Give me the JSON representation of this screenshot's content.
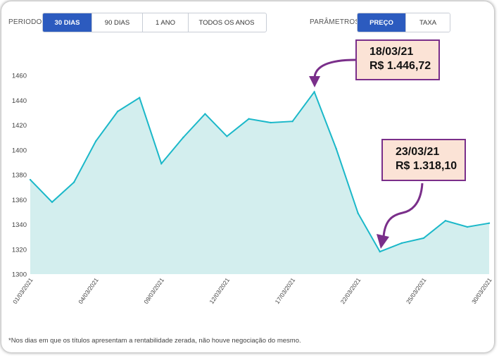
{
  "filters": {
    "period_label": "PERIODO",
    "period_options": [
      "30 DIAS",
      "90 DIAS",
      "1 ANO",
      "TODOS OS ANOS"
    ],
    "period_selected": "30 DIAS",
    "param_label": "PARÂMETROS",
    "param_options": [
      "PREÇO",
      "TAXA"
    ],
    "param_selected": "PREÇO"
  },
  "callouts": [
    {
      "line1": "18/03/21",
      "line2": "R$ 1.446,72"
    },
    {
      "line1": "23/03/21",
      "line2": "R$ 1.318,10"
    }
  ],
  "footnote": "*Nos dias em que os títulos apresentam a rentabilidade zerada, não houve negociação do mesmo.",
  "colors": {
    "line": "#1bb8c9",
    "fill": "#d3eeee",
    "accent": "#2c5bbf",
    "callout_border": "#7a2f8a",
    "callout_bg": "#fbe3d6"
  },
  "chart_data": {
    "type": "area",
    "ylim": [
      1300,
      1460
    ],
    "yticks": [
      1300,
      1320,
      1340,
      1360,
      1380,
      1400,
      1420,
      1440,
      1460
    ],
    "xtick_labels": [
      "01/03/2021",
      "04/03/2021",
      "09/03/2021",
      "12/03/2021",
      "17/03/2021",
      "22/03/2021",
      "25/03/2021",
      "30/03/2021"
    ],
    "xtick_indices": [
      0,
      3,
      6,
      9,
      12,
      15,
      18,
      21
    ],
    "values": [
      1376,
      1358,
      1374,
      1407,
      1431,
      1442,
      1389,
      1410,
      1429,
      1411,
      1425,
      1422,
      1423,
      1446.72,
      1401,
      1349,
      1318.1,
      1325,
      1329,
      1343,
      1338,
      1341
    ],
    "grid": false
  }
}
